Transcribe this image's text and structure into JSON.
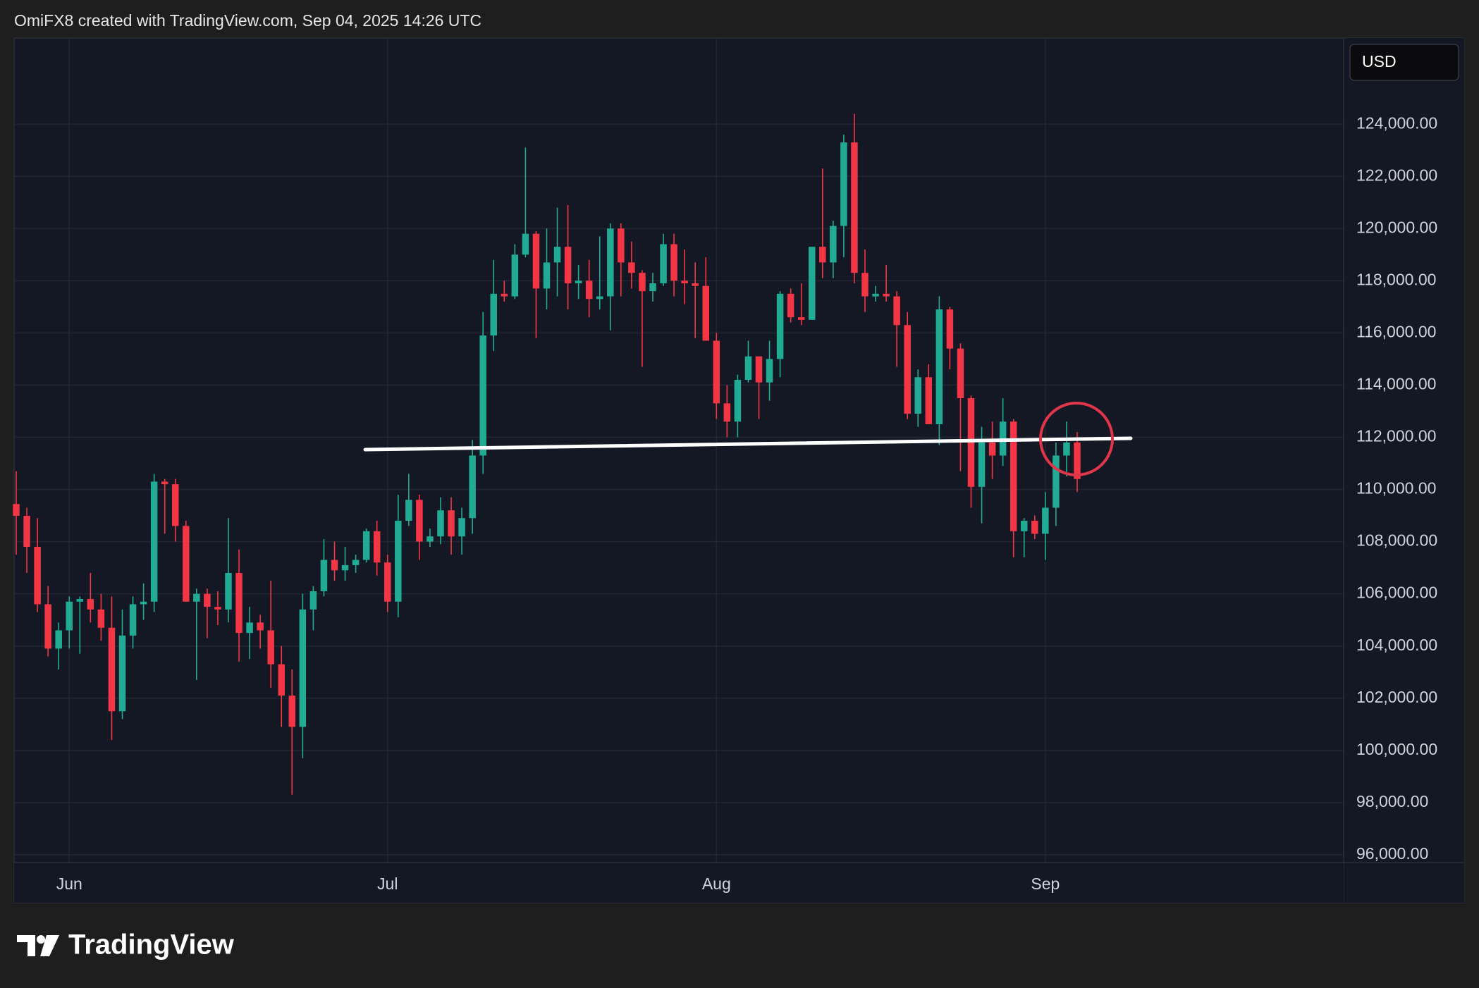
{
  "header": {
    "text": "OmiFX8 created with TradingView.com, Sep 04, 2025 14:26 UTC"
  },
  "footer": {
    "brand": "TradingView"
  },
  "chart_data": {
    "type": "candlestick",
    "currency": "USD",
    "up_color": "#22ab94",
    "down_color": "#f23645",
    "grid": true,
    "categories": [
      null,
      null,
      null,
      null,
      null,
      "Jun",
      null,
      null,
      null,
      null,
      null,
      null,
      null,
      null,
      null,
      null,
      null,
      null,
      null,
      null,
      null,
      null,
      null,
      null,
      null,
      null,
      null,
      null,
      null,
      null,
      null,
      null,
      null,
      null,
      null,
      "Jul",
      null,
      null,
      null,
      null,
      null,
      null,
      null,
      null,
      null,
      null,
      null,
      null,
      null,
      null,
      null,
      null,
      null,
      null,
      null,
      null,
      null,
      null,
      null,
      null,
      null,
      null,
      null,
      null,
      null,
      null,
      "Aug",
      null,
      null,
      null,
      null,
      null,
      null,
      null,
      null,
      null,
      null,
      null,
      null,
      null,
      null,
      null,
      null,
      null,
      null,
      null,
      null,
      null,
      null,
      null,
      null,
      null,
      null,
      null,
      null,
      null,
      null,
      "Sep",
      null,
      null,
      null
    ],
    "open": [
      109440,
      108990,
      107800,
      105600,
      103900,
      104600,
      105700,
      105800,
      105400,
      104700,
      101500,
      104400,
      105600,
      105700,
      110300,
      110200,
      108600,
      105700,
      106000,
      105500,
      105400,
      106800,
      104500,
      104900,
      104600,
      103300,
      102100,
      100900,
      105400,
      106100,
      107300,
      106900,
      107100,
      107300,
      108400,
      107200,
      105700,
      108800,
      109600,
      108000,
      108200,
      109200,
      108200,
      108900,
      111300,
      115900,
      117500,
      117400,
      119000,
      119800,
      117700,
      118700,
      119300,
      117900,
      118000,
      117300,
      117400,
      120000,
      118700,
      118300,
      117600,
      117900,
      119400,
      118000,
      117900,
      117800,
      115700,
      113300,
      112600,
      114200,
      115100,
      114100,
      115000,
      117500,
      116600,
      116500,
      119300,
      118700,
      120100,
      123300,
      118300,
      117400,
      117500,
      117400,
      116300,
      112900,
      114300,
      112500,
      116900,
      115400,
      113500,
      110100,
      111800,
      111300,
      112600,
      108400,
      108800,
      108300,
      109300,
      111300,
      111800
    ],
    "high": [
      110700,
      109300,
      108900,
      106300,
      104900,
      105900,
      105900,
      106800,
      106000,
      105900,
      105400,
      105900,
      106400,
      110600,
      110400,
      110400,
      108800,
      106200,
      106200,
      106100,
      108900,
      107700,
      105500,
      105200,
      106500,
      104000,
      103100,
      106000,
      106300,
      108100,
      108000,
      107800,
      107500,
      108500,
      108800,
      107500,
      109800,
      110600,
      109800,
      108500,
      109700,
      109700,
      109300,
      111900,
      116800,
      118800,
      118000,
      119400,
      123100,
      119900,
      120000,
      120800,
      120900,
      118600,
      118800,
      119700,
      120200,
      120200,
      119500,
      118400,
      118300,
      119800,
      119800,
      119200,
      118700,
      118900,
      116000,
      114000,
      114400,
      115700,
      115100,
      115700,
      117600,
      117700,
      117900,
      119300,
      122300,
      120300,
      123600,
      124400,
      119200,
      117800,
      118600,
      117600,
      116800,
      114600,
      114800,
      117400,
      117000,
      115600,
      113600,
      112400,
      112600,
      113500,
      112700,
      108900,
      109000,
      109900,
      111800,
      112600,
      112200
    ],
    "low": [
      107500,
      106800,
      105300,
      103600,
      103100,
      103900,
      103700,
      104900,
      104200,
      100400,
      101200,
      103900,
      105000,
      105300,
      108300,
      108000,
      105700,
      102700,
      104300,
      104800,
      104900,
      103400,
      103500,
      103900,
      102400,
      100900,
      98300,
      99700,
      104600,
      105900,
      106500,
      106500,
      106800,
      107200,
      106700,
      105300,
      105100,
      108600,
      107300,
      107800,
      107900,
      107500,
      107500,
      108300,
      110600,
      115300,
      117200,
      117300,
      118900,
      115800,
      116900,
      117400,
      116900,
      117300,
      116600,
      116900,
      116100,
      117400,
      117700,
      114700,
      117200,
      117800,
      117400,
      117100,
      115800,
      115700,
      112700,
      112000,
      112000,
      114100,
      112700,
      113400,
      114300,
      116400,
      116300,
      116500,
      118100,
      118100,
      118900,
      117900,
      116800,
      117200,
      117200,
      114700,
      112700,
      112400,
      112500,
      111700,
      114600,
      110700,
      109300,
      108700,
      110400,
      110900,
      107400,
      107400,
      108100,
      107300,
      108600,
      110500,
      109900
    ],
    "close": [
      108990,
      107800,
      105600,
      103900,
      104600,
      105700,
      105800,
      105400,
      104700,
      101500,
      104400,
      105600,
      105700,
      110300,
      110200,
      108600,
      105700,
      106000,
      105500,
      105400,
      106800,
      104500,
      104900,
      104600,
      103300,
      102100,
      100900,
      105400,
      106100,
      107300,
      106900,
      107100,
      107300,
      108400,
      107200,
      105700,
      108800,
      109600,
      108000,
      108200,
      109200,
      108200,
      108900,
      111300,
      115900,
      117500,
      117400,
      119000,
      119800,
      117700,
      118700,
      119300,
      117900,
      118000,
      117300,
      117400,
      120000,
      118700,
      118300,
      117600,
      117900,
      119400,
      118000,
      117900,
      117800,
      115700,
      113300,
      112600,
      114200,
      115100,
      114100,
      115000,
      117500,
      116600,
      116500,
      119300,
      118700,
      120100,
      123300,
      118300,
      117400,
      117500,
      117400,
      116300,
      112900,
      114300,
      112500,
      116900,
      115400,
      113500,
      110100,
      111800,
      111300,
      112600,
      108400,
      108800,
      108300,
      109300,
      111300,
      111800,
      110400
    ],
    "ylim": [
      95700,
      127300
    ],
    "yticks": [
      {
        "value": 96000,
        "label": "96,000.00"
      },
      {
        "value": 98000,
        "label": "98,000.00"
      },
      {
        "value": 100000,
        "label": "100,000.00"
      },
      {
        "value": 102000,
        "label": "102,000.00"
      },
      {
        "value": 104000,
        "label": "104,000.00"
      },
      {
        "value": 106000,
        "label": "106,000.00"
      },
      {
        "value": 108000,
        "label": "108,000.00"
      },
      {
        "value": 110000,
        "label": "110,000.00"
      },
      {
        "value": 112000,
        "label": "112,000.00"
      },
      {
        "value": 114000,
        "label": "114,000.00"
      },
      {
        "value": 116000,
        "label": "116,000.00"
      },
      {
        "value": 118000,
        "label": "118,000.00"
      },
      {
        "value": 120000,
        "label": "120,000.00"
      },
      {
        "value": 122000,
        "label": "122,000.00"
      },
      {
        "value": 124000,
        "label": "124,000.00"
      }
    ]
  }
}
